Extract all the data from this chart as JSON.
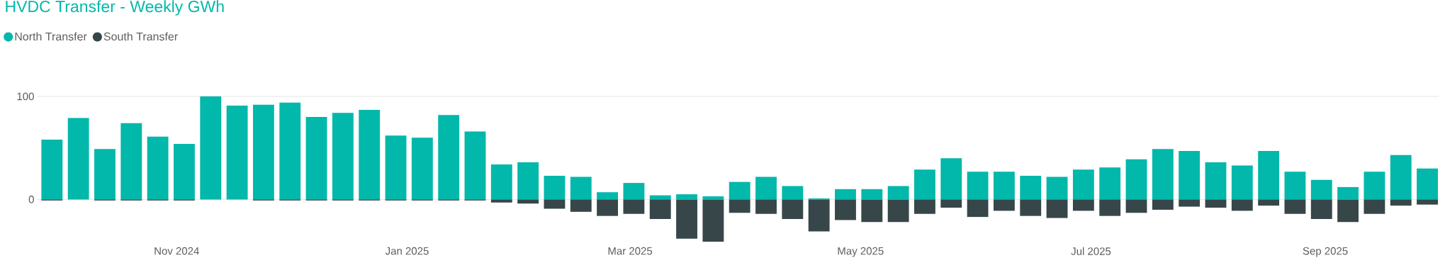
{
  "chart_data": {
    "type": "bar",
    "title": "HVDC Transfer - Weekly GWh",
    "stacked": true,
    "legend": "top left",
    "grid": "y",
    "x": [
      "2024-09-29",
      "2024-10-06",
      "2024-10-13",
      "2024-10-20",
      "2024-10-27",
      "2024-11-03",
      "2024-11-10",
      "2024-11-17",
      "2024-11-24",
      "2024-12-01",
      "2024-12-08",
      "2024-12-15",
      "2024-12-22",
      "2024-12-29",
      "2025-01-05",
      "2025-01-12",
      "2025-01-19",
      "2025-01-26",
      "2025-02-02",
      "2025-02-09",
      "2025-02-16",
      "2025-02-23",
      "2025-03-02",
      "2025-03-09",
      "2025-03-16",
      "2025-03-23",
      "2025-03-30",
      "2025-04-06",
      "2025-04-13",
      "2025-04-20",
      "2025-04-27",
      "2025-05-04",
      "2025-05-11",
      "2025-05-18",
      "2025-05-25",
      "2025-06-01",
      "2025-06-08",
      "2025-06-15",
      "2025-06-22",
      "2025-06-29",
      "2025-07-06",
      "2025-07-13",
      "2025-07-20",
      "2025-07-27",
      "2025-08-03",
      "2025-08-10",
      "2025-08-17",
      "2025-08-24",
      "2025-08-31",
      "2025-09-07",
      "2025-09-14",
      "2025-09-21",
      "2025-09-28"
    ],
    "series": [
      {
        "name": "North Transfer",
        "color": "#01b8aa",
        "values": [
          58,
          79,
          49,
          74,
          61,
          54,
          100,
          91,
          92,
          94,
          80,
          84,
          87,
          62,
          60,
          82,
          66,
          34,
          36,
          23,
          22,
          7,
          16,
          4,
          5,
          3,
          17,
          22,
          13,
          1,
          10,
          10,
          13,
          29,
          40,
          27,
          27,
          23,
          22,
          29,
          31,
          39,
          49,
          47,
          36,
          33,
          47,
          27,
          19,
          12,
          27,
          43,
          30
        ]
      },
      {
        "name": "South Transfer",
        "color": "#374649",
        "values": [
          -1,
          0,
          -1,
          -1,
          -1,
          -1,
          0,
          0,
          -1,
          -1,
          -1,
          -1,
          -1,
          -1,
          -1,
          -1,
          -1,
          -3,
          -4,
          -9,
          -12,
          -16,
          -14,
          -19,
          -38,
          -41,
          -13,
          -14,
          -19,
          -31,
          -20,
          -22,
          -22,
          -14,
          -8,
          -17,
          -11,
          -16,
          -18,
          -11,
          -16,
          -13,
          -10,
          -7,
          -8,
          -11,
          -6,
          -14,
          -19,
          -22,
          -14,
          -6,
          -5
        ]
      }
    ],
    "xlim": [
      "2024-09-25",
      "2025-10-01"
    ],
    "xticks": [
      {
        "value": "2024-11-01",
        "label": "Nov 2024"
      },
      {
        "value": "2025-01-01",
        "label": "Jan 2025"
      },
      {
        "value": "2025-03-01",
        "label": "Mar 2025"
      },
      {
        "value": "2025-05-01",
        "label": "May 2025"
      },
      {
        "value": "2025-07-01",
        "label": "Jul 2025"
      },
      {
        "value": "2025-09-01",
        "label": "Sep 2025"
      }
    ],
    "ylim": [
      -41,
      100
    ],
    "yticks": [
      0,
      100
    ]
  }
}
